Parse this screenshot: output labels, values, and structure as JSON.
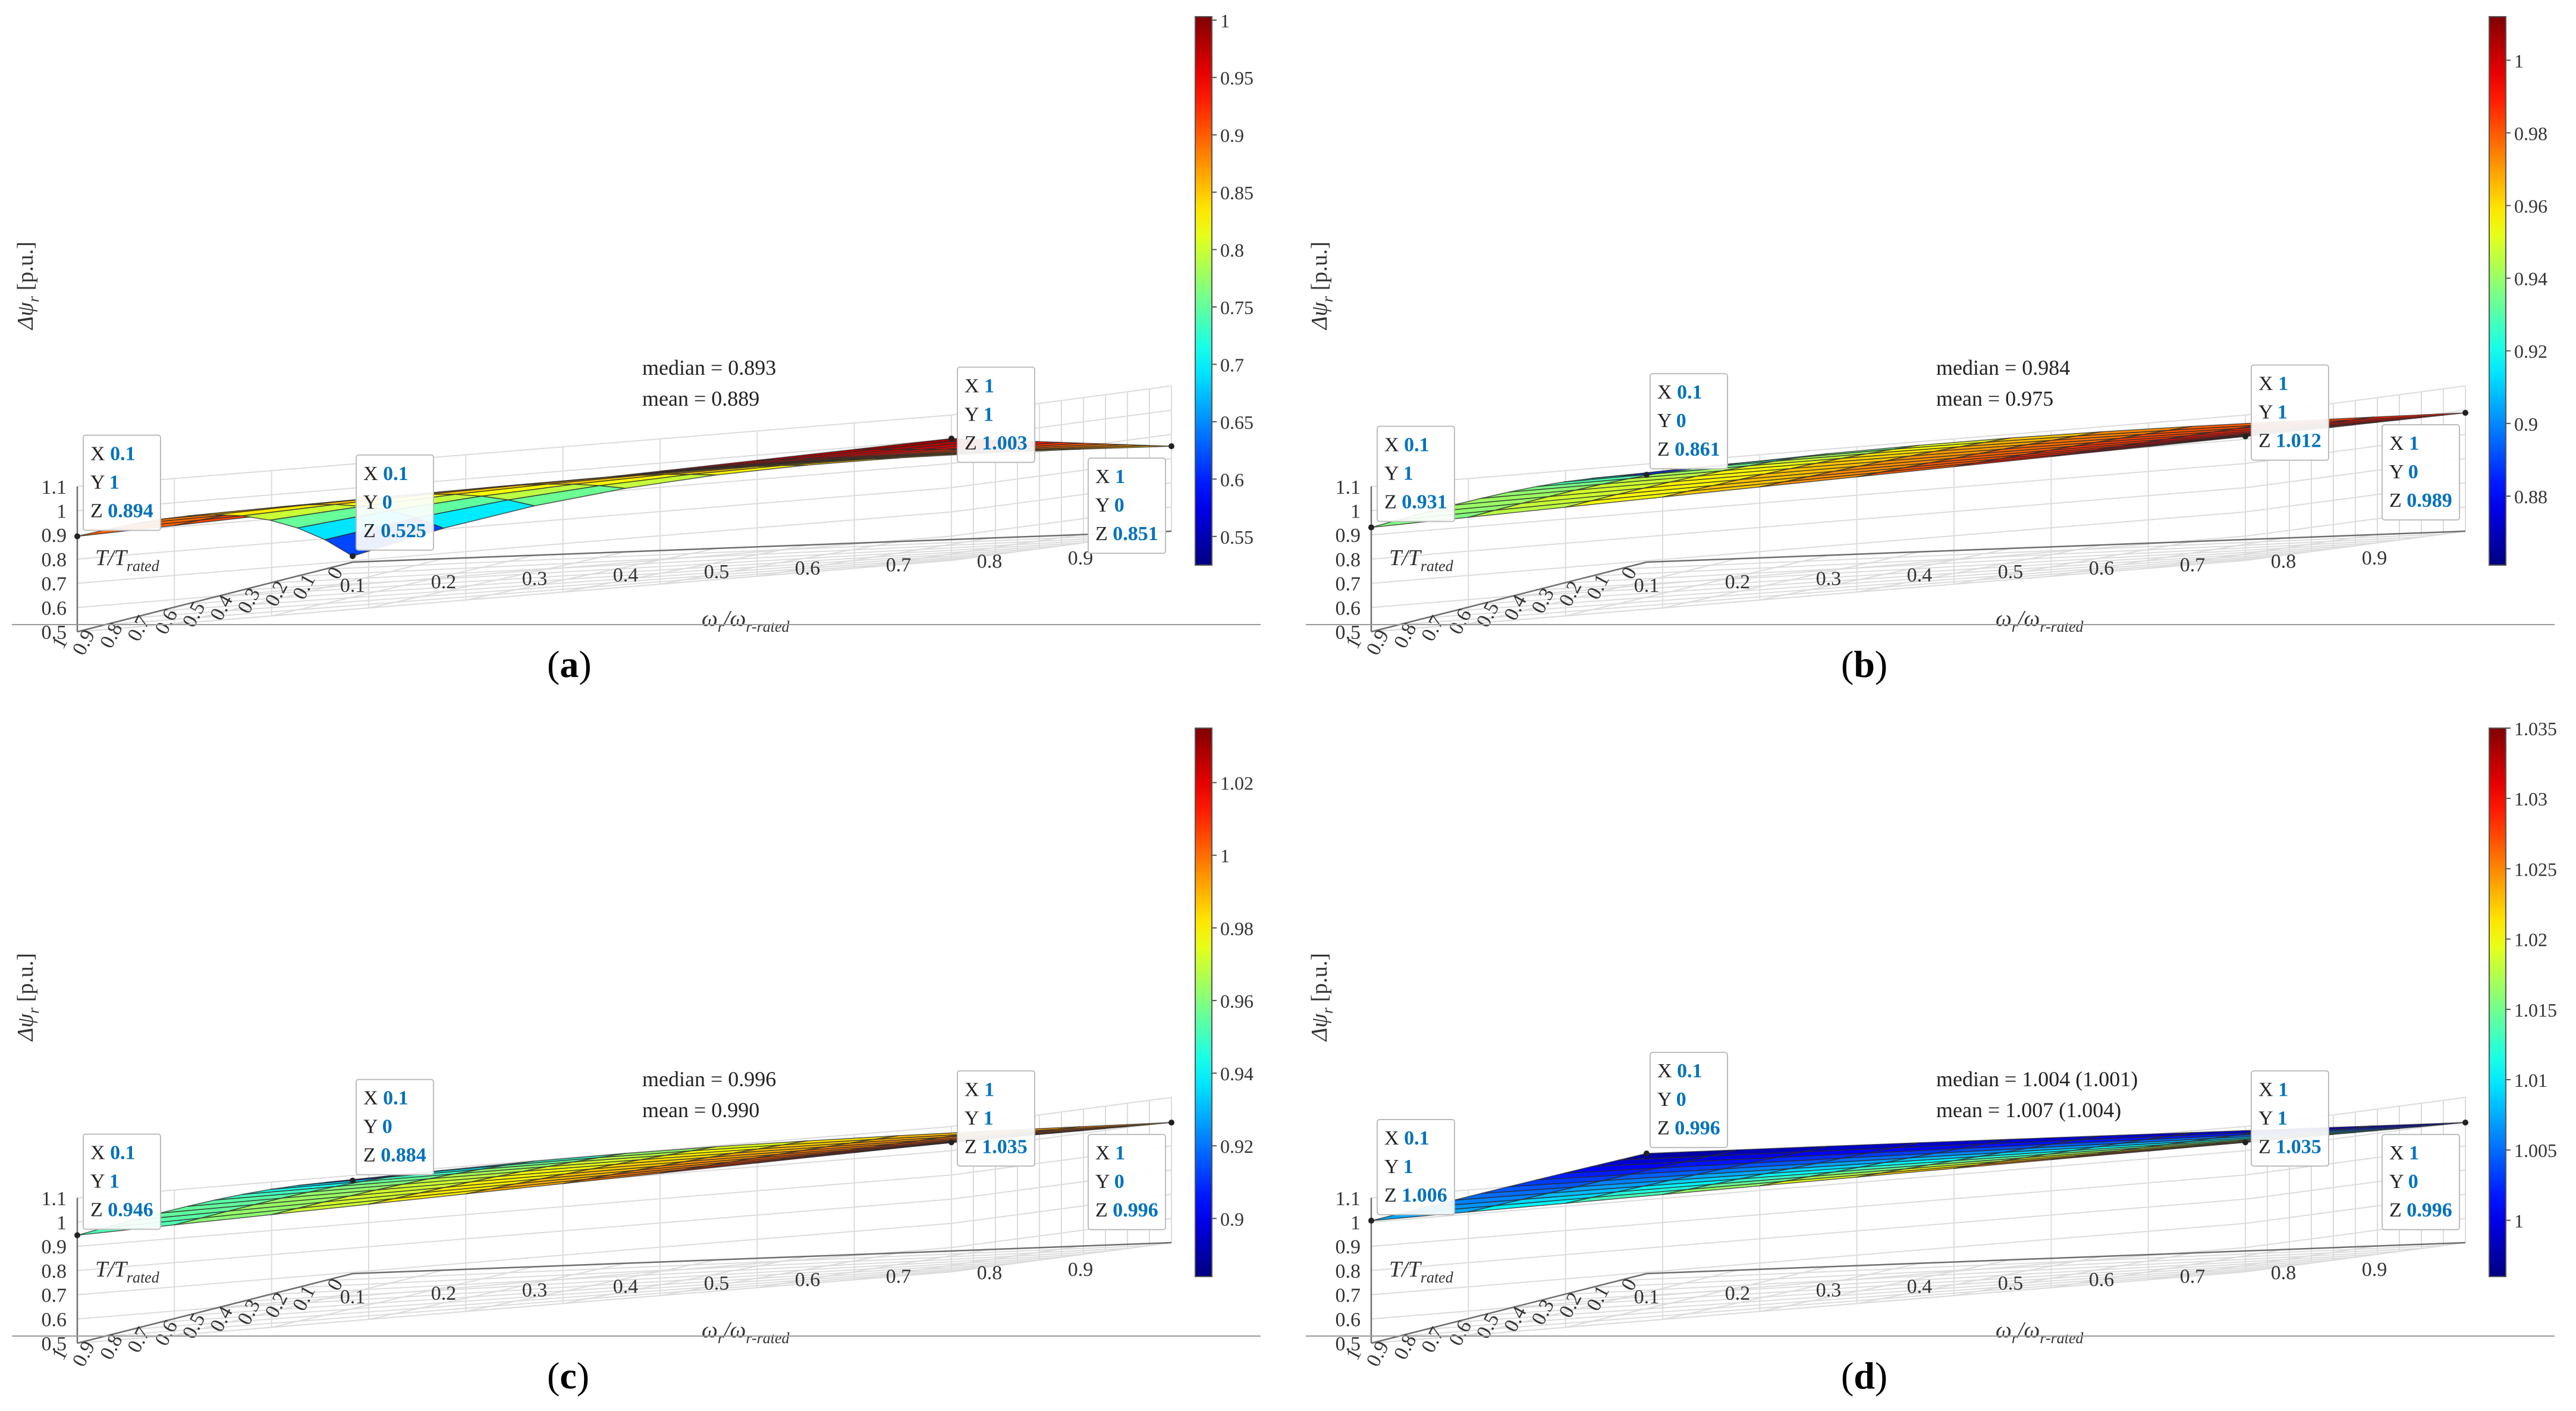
{
  "panels": [
    {
      "id": "a",
      "caption_letter": "a",
      "chart_data": {
        "type": "surface",
        "x_label_main": "ω",
        "x_label_sub": "r",
        "x_label_tail": "/ω",
        "x_label_tail_sub": "r-rated",
        "y_label_main": "T/T",
        "y_label_sub": "rated",
        "z_label_main": "Δψ",
        "z_label_sub": "r",
        "z_label_unit": " [p.u.]",
        "x_ticks": [
          "0.1",
          "0.2",
          "0.3",
          "0.4",
          "0.5",
          "0.6",
          "0.7",
          "0.8",
          "0.9"
        ],
        "y_ticks": [
          "0",
          "0.1",
          "0.2",
          "0.3",
          "0.4",
          "0.5",
          "0.6",
          "0.7",
          "0.8",
          "0.9",
          "1"
        ],
        "z_ticks": [
          "0.5",
          "0.6",
          "0.7",
          "0.8",
          "0.9",
          "1",
          "1.1"
        ],
        "zlim": [
          0.5,
          1.1
        ],
        "colorbar_ticks": [
          "0.55",
          "0.6",
          "0.65",
          "0.7",
          "0.75",
          "0.8",
          "0.85",
          "0.9",
          "0.95",
          "1"
        ],
        "color_range": [
          0.525,
          1.003
        ],
        "corners": {
          "x01_y0": 0.525,
          "x1_y0": 0.851,
          "x01_y1": 0.894,
          "x1_y1": 1.003
        },
        "stats": [
          "median = 0.893",
          "mean = 0.889"
        ],
        "datatips": [
          {
            "at": "x01_y1",
            "x": "0.1",
            "y": "1",
            "z": "0.894"
          },
          {
            "at": "x1_y1",
            "x": "1",
            "y": "1",
            "z": "1.003"
          },
          {
            "at": "x1_y0",
            "x": "1",
            "y": "0",
            "z": "0.851"
          },
          {
            "at": "x01_y0",
            "x": "0.1",
            "y": "0",
            "z": "0.525"
          }
        ]
      }
    },
    {
      "id": "b",
      "caption_letter": "b",
      "chart_data": {
        "type": "surface",
        "x_label_main": "ω",
        "x_label_sub": "r",
        "x_label_tail": "/ω",
        "x_label_tail_sub": "r-rated",
        "y_label_main": "T/T",
        "y_label_sub": "rated",
        "z_label_main": "Δψ",
        "z_label_sub": "r",
        "z_label_unit": " [p.u.]",
        "x_ticks": [
          "0.1",
          "0.2",
          "0.3",
          "0.4",
          "0.5",
          "0.6",
          "0.7",
          "0.8",
          "0.9"
        ],
        "y_ticks": [
          "0",
          "0.1",
          "0.2",
          "0.3",
          "0.4",
          "0.5",
          "0.6",
          "0.7",
          "0.8",
          "0.9",
          "1"
        ],
        "z_ticks": [
          "0.5",
          "0.6",
          "0.7",
          "0.8",
          "0.9",
          "1",
          "1.1"
        ],
        "zlim": [
          0.5,
          1.1
        ],
        "colorbar_ticks": [
          "0.88",
          "0.9",
          "0.92",
          "0.94",
          "0.96",
          "0.98",
          "1"
        ],
        "color_range": [
          0.861,
          1.012
        ],
        "corners": {
          "x01_y0": 0.861,
          "x1_y0": 0.989,
          "x01_y1": 0.931,
          "x1_y1": 1.012
        },
        "stats": [
          "median = 0.984",
          "mean = 0.975"
        ],
        "datatips": [
          {
            "at": "x01_y1",
            "x": "0.1",
            "y": "1",
            "z": "0.931"
          },
          {
            "at": "x1_y1",
            "x": "1",
            "y": "1",
            "z": "1.012"
          },
          {
            "at": "x1_y0",
            "x": "1",
            "y": "0",
            "z": "0.989"
          },
          {
            "at": "x01_y0",
            "x": "0.1",
            "y": "0",
            "z": "0.861"
          }
        ]
      }
    },
    {
      "id": "c",
      "caption_letter": "c",
      "chart_data": {
        "type": "surface",
        "x_label_main": "ω",
        "x_label_sub": "r",
        "x_label_tail": "/ω",
        "x_label_tail_sub": "r-rated",
        "y_label_main": "T/T",
        "y_label_sub": "rated",
        "z_label_main": "Δψ",
        "z_label_sub": "r",
        "z_label_unit": " [p.u.]",
        "x_ticks": [
          "0.1",
          "0.2",
          "0.3",
          "0.4",
          "0.5",
          "0.6",
          "0.7",
          "0.8",
          "0.9"
        ],
        "y_ticks": [
          "0",
          "0.1",
          "0.2",
          "0.3",
          "0.4",
          "0.5",
          "0.6",
          "0.7",
          "0.8",
          "0.9",
          "1"
        ],
        "z_ticks": [
          "0.5",
          "0.6",
          "0.7",
          "0.8",
          "0.9",
          "1",
          "1.1"
        ],
        "zlim": [
          0.5,
          1.1
        ],
        "colorbar_ticks": [
          "0.9",
          "0.92",
          "0.94",
          "0.96",
          "0.98",
          "1",
          "1.02"
        ],
        "color_range": [
          0.884,
          1.035
        ],
        "corners": {
          "x01_y0": 0.884,
          "x1_y0": 0.996,
          "x01_y1": 0.946,
          "x1_y1": 1.035
        },
        "stats": [
          "median = 0.996",
          "mean = 0.990"
        ],
        "datatips": [
          {
            "at": "x01_y1",
            "x": "0.1",
            "y": "1",
            "z": "0.946"
          },
          {
            "at": "x1_y1",
            "x": "1",
            "y": "1",
            "z": "1.035"
          },
          {
            "at": "x1_y0",
            "x": "1",
            "y": "0",
            "z": "0.996"
          },
          {
            "at": "x01_y0",
            "x": "0.1",
            "y": "0",
            "z": "0.884"
          }
        ]
      }
    },
    {
      "id": "d",
      "caption_letter": "d",
      "chart_data": {
        "type": "surface",
        "x_label_main": "ω",
        "x_label_sub": "r",
        "x_label_tail": "/ω",
        "x_label_tail_sub": "r-rated",
        "y_label_main": "T/T",
        "y_label_sub": "rated",
        "z_label_main": "Δψ",
        "z_label_sub": "r",
        "z_label_unit": " [p.u.]",
        "x_ticks": [
          "0.1",
          "0.2",
          "0.3",
          "0.4",
          "0.5",
          "0.6",
          "0.7",
          "0.8",
          "0.9"
        ],
        "y_ticks": [
          "0",
          "0.1",
          "0.2",
          "0.3",
          "0.4",
          "0.5",
          "0.6",
          "0.7",
          "0.8",
          "0.9",
          "1"
        ],
        "z_ticks": [
          "0.5",
          "0.6",
          "0.7",
          "0.8",
          "0.9",
          "1",
          "1.1"
        ],
        "zlim": [
          0.5,
          1.1
        ],
        "colorbar_ticks": [
          "1",
          "1.005",
          "1.01",
          "1.015",
          "1.02",
          "1.025",
          "1.03",
          "1.035"
        ],
        "color_range": [
          0.996,
          1.035
        ],
        "corners": {
          "x01_y0": 0.996,
          "x1_y0": 0.996,
          "x01_y1": 1.006,
          "x1_y1": 1.035
        },
        "stats": [
          "median = 1.004 (1.001)",
          "mean = 1.007 (1.004)"
        ],
        "datatips": [
          {
            "at": "x01_y1",
            "x": "0.1",
            "y": "1",
            "z": "1.006"
          },
          {
            "at": "x1_y1",
            "x": "1",
            "y": "1",
            "z": "1.035"
          },
          {
            "at": "x1_y0",
            "x": "1",
            "y": "0",
            "z": "0.996"
          },
          {
            "at": "x01_y0",
            "x": "0.1",
            "y": "0",
            "z": "0.996"
          }
        ]
      }
    }
  ],
  "colors": {
    "datatip_value": "#0072bd",
    "grid": "#dcdcdc",
    "axis": "#6e6e6e",
    "mesh": "#2b2b2b"
  }
}
